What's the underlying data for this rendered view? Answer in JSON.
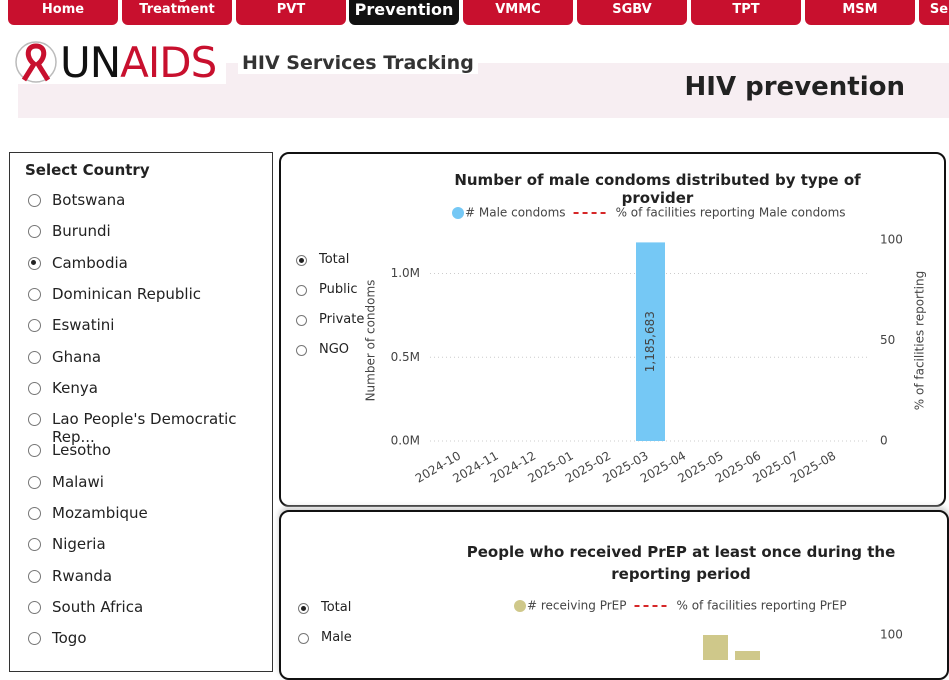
{
  "nav": {
    "tabs": [
      "Home",
      "Testing and Treatment",
      "PVT",
      "Prevention",
      "VMMC",
      "SGBV",
      "TPT",
      "MSM",
      "Se"
    ],
    "active": "Prevention"
  },
  "header": {
    "logo_parts": [
      "UN",
      "AIDS"
    ],
    "app_title": "HIV Services Tracking",
    "page_title": "HIV prevention"
  },
  "country_filter": {
    "title": "Select Country",
    "countries": [
      "Botswana",
      "Burundi",
      "Cambodia",
      "Dominican Republic",
      "Eswatini",
      "Ghana",
      "Kenya",
      "Lao People's Democratic Rep...",
      "Lesotho",
      "Malawi",
      "Mozambique",
      "Nigeria",
      "Rwanda",
      "South Africa",
      "Togo"
    ],
    "selected": "Cambodia"
  },
  "chart_data": [
    {
      "type": "bar",
      "title": "Number of male condoms distributed by type of provider",
      "options": [
        "Total",
        "Public",
        "Private",
        "NGO"
      ],
      "selected": "Total",
      "categories": [
        "2024-10",
        "2024-11",
        "2024-12",
        "2025-01",
        "2025-02",
        "2025-03",
        "2025-04",
        "2025-05",
        "2025-06",
        "2025-07",
        "2025-08"
      ],
      "series": [
        {
          "name": "# Male condoms",
          "color": "#75c8f5",
          "values": [
            null,
            null,
            null,
            null,
            null,
            1185683,
            null,
            null,
            null,
            null,
            null
          ],
          "value_labels": [
            null,
            null,
            null,
            null,
            null,
            "1,185,683",
            null,
            null,
            null,
            null,
            null
          ]
        },
        {
          "name": "% of facilities reporting Male condoms",
          "color": "#d62728",
          "axis": "y2",
          "values": [
            null,
            null,
            null,
            null,
            null,
            null,
            null,
            null,
            null,
            null,
            null
          ]
        }
      ],
      "ylabel": "Number of condoms",
      "y2label": "% of facilities reporting",
      "ylim": [
        0,
        1200000
      ],
      "yticks": [
        {
          "value": 0,
          "label": "0.0M"
        },
        {
          "value": 500000,
          "label": "0.5M"
        },
        {
          "value": 1000000,
          "label": "1.0M"
        }
      ],
      "y2lim": [
        0,
        100
      ],
      "y2ticks": [
        0,
        50,
        100
      ],
      "grid": true
    },
    {
      "type": "bar",
      "title": "People who received PrEP at least once during the reporting period",
      "options": [
        "Total",
        "Male"
      ],
      "selected": "Total",
      "series": [
        {
          "name": "# receiving PrEP",
          "color": "#cfc88a"
        },
        {
          "name": "% of facilities reporting PrEP",
          "color": "#d62728",
          "axis": "y2"
        }
      ],
      "y2lim": [
        0,
        100
      ],
      "y2ticks": [
        100
      ],
      "grid": true
    }
  ]
}
